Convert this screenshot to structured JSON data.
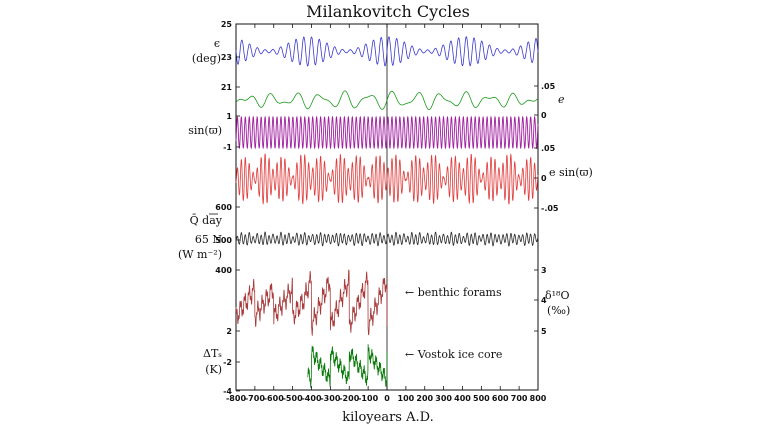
{
  "chart_data": {
    "type": "line",
    "title": "Milankovitch Cycles",
    "xlabel": "kiloyears A.D.",
    "xlim": [
      -800,
      800
    ],
    "x_ticks": [
      "-800",
      "-700",
      "-600",
      "-500",
      "-400",
      "-300",
      "-200",
      "-100",
      "0",
      "100",
      "200",
      "300",
      "400",
      "500",
      "600",
      "700",
      "800"
    ],
    "grid": false,
    "colors": {
      "obliquity": "#3a3ad0",
      "eccentricity": "#1e9a1e",
      "precession": "#a020a0",
      "esinw": "#e03a3a",
      "insolation": "#2a2a2a",
      "benthic": "#a83a3a",
      "vostok": "#0a7a0a"
    },
    "panels": [
      {
        "id": "obliquity",
        "label_line1": "ϵ",
        "label_line2": "(deg)",
        "label_side": "left",
        "left_ticks": [
          "25",
          "23"
        ],
        "right_ticks": [],
        "ylim": [
          22,
          25
        ],
        "series": [
          {
            "x_range": [
              -800,
              800
            ],
            "period_kyr": 41,
            "mean": 23.4,
            "amplitude": 1.1,
            "modulation_period_kyr": 1200
          }
        ]
      },
      {
        "id": "eccentricity",
        "label_line1": "e",
        "label_side": "right",
        "left_ticks": [
          "21"
        ],
        "right_ticks": [
          ".05",
          "0"
        ],
        "ylim": [
          0,
          0.055
        ],
        "series": [
          {
            "x_range": [
              -800,
              800
            ],
            "period_kyr": 100,
            "secondary_period_kyr": 413,
            "mean": 0.027,
            "amplitude": 0.02
          }
        ]
      },
      {
        "id": "precession",
        "label_line1": "sin(ϖ)",
        "label_side": "left",
        "left_ticks": [
          "1",
          "-1"
        ],
        "right_ticks": [
          ".05"
        ],
        "ylim": [
          -1,
          1
        ],
        "series": [
          {
            "x_range": [
              -800,
              800
            ],
            "period_kyr": 21,
            "mean": 0,
            "amplitude": 1
          }
        ]
      },
      {
        "id": "esinw",
        "label_line1": "e sin(ϖ)",
        "label_side": "right",
        "left_ticks": [
          "600"
        ],
        "right_ticks": [
          "0",
          "-.05"
        ],
        "ylim": [
          -0.05,
          0.05
        ],
        "series": [
          {
            "x_range": [
              -800,
              800
            ],
            "period_kyr": 21,
            "mean": 0,
            "amplitude": 0.045
          }
        ]
      },
      {
        "id": "insolation",
        "label_line1": "Q̄ day",
        "label_line2": "65 N",
        "label_line3": "(W m⁻²)",
        "label_side": "left",
        "left_ticks": [
          "500",
          "400"
        ],
        "right_ticks": [],
        "ylim": [
          400,
          600
        ],
        "series": [
          {
            "x_range": [
              -800,
              800
            ],
            "period_kyr": 21,
            "mean": 500,
            "amplitude": 35
          }
        ]
      },
      {
        "id": "benthic",
        "label_line1": "δ¹⁸O",
        "label_line2": "(‰)",
        "label_side": "right",
        "annotation": "← benthic forams",
        "left_ticks": [
          "2"
        ],
        "right_ticks": [
          "3",
          "4",
          "5"
        ],
        "ylim": [
          3,
          5
        ],
        "series": [
          {
            "x_range": [
              -800,
              0
            ],
            "period_kyr": 100,
            "mean": 4,
            "amplitude": 0.9
          }
        ]
      },
      {
        "id": "vostok",
        "label_line1": "ΔTₛ",
        "label_line2": "(K)",
        "label_side": "left",
        "annotation": "← Vostok ice core",
        "left_ticks": [
          "-2",
          "-4"
        ],
        "right_ticks": [],
        "ylim": [
          -10,
          2
        ],
        "series": [
          {
            "x_range": [
              -420,
              0
            ],
            "period_kyr": 100,
            "mean": -5,
            "amplitude": 4
          }
        ]
      }
    ]
  }
}
